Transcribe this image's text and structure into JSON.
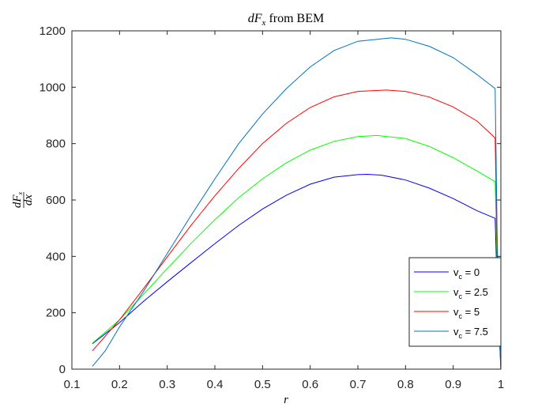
{
  "chart_data": {
    "type": "line",
    "title": "dF_x from BEM",
    "xlabel": "r",
    "ylabel": "dF_x/dx",
    "xlim": [
      0.1,
      1.0
    ],
    "ylim": [
      0,
      1200
    ],
    "xticks": [
      0.1,
      0.2,
      0.3,
      0.4,
      0.5,
      0.6,
      0.7,
      0.8,
      0.9,
      1.0
    ],
    "xtick_labels": [
      "0.1",
      "0.2",
      "0.3",
      "0.4",
      "0.5",
      "0.6",
      "0.7",
      "0.8",
      "0.9",
      "1"
    ],
    "yticks": [
      0,
      200,
      400,
      600,
      800,
      1000,
      1200
    ],
    "ytick_labels": [
      "0",
      "200",
      "400",
      "600",
      "800",
      "1000",
      "1200"
    ],
    "grid": false,
    "legend_position": "bottom-right",
    "series": [
      {
        "name": "v_c = 0",
        "legend_sub": "c",
        "legend_value": " = 0",
        "color": "#0000ff",
        "x": [
          0.143,
          0.2,
          0.25,
          0.3,
          0.35,
          0.4,
          0.45,
          0.5,
          0.55,
          0.6,
          0.65,
          0.7,
          0.72,
          0.75,
          0.8,
          0.85,
          0.9,
          0.95,
          0.988,
          0.992,
          0.996,
          1.0
        ],
        "y": [
          90,
          165,
          240,
          310,
          378,
          445,
          510,
          568,
          617,
          656,
          681,
          690,
          691,
          688,
          671,
          642,
          605,
          562,
          535,
          300,
          150,
          0
        ]
      },
      {
        "name": "v_c = 2.5",
        "legend_sub": "c",
        "legend_value": " = 2.5",
        "color": "#00ff00",
        "x": [
          0.143,
          0.2,
          0.25,
          0.3,
          0.35,
          0.4,
          0.45,
          0.5,
          0.55,
          0.6,
          0.65,
          0.7,
          0.74,
          0.8,
          0.85,
          0.9,
          0.95,
          0.988,
          0.992,
          0.996,
          1.0
        ],
        "y": [
          92,
          175,
          265,
          357,
          446,
          530,
          608,
          675,
          732,
          777,
          808,
          825,
          829,
          818,
          790,
          750,
          703,
          665,
          400,
          200,
          0
        ]
      },
      {
        "name": "v_c = 5",
        "legend_sub": "c",
        "legend_value": " = 5",
        "color": "#ff0000",
        "x": [
          0.143,
          0.2,
          0.25,
          0.3,
          0.35,
          0.4,
          0.45,
          0.5,
          0.55,
          0.6,
          0.65,
          0.7,
          0.76,
          0.8,
          0.85,
          0.9,
          0.95,
          0.988,
          0.992,
          0.996,
          1.0
        ],
        "y": [
          65,
          175,
          285,
          398,
          510,
          615,
          712,
          800,
          872,
          928,
          966,
          985,
          990,
          985,
          965,
          930,
          880,
          820,
          450,
          200,
          0
        ]
      },
      {
        "name": "v_c = 7.5",
        "legend_sub": "c",
        "legend_value": " = 7.5",
        "color": "#0072bd",
        "x": [
          0.143,
          0.17,
          0.2,
          0.25,
          0.3,
          0.35,
          0.4,
          0.45,
          0.5,
          0.55,
          0.6,
          0.65,
          0.7,
          0.77,
          0.8,
          0.85,
          0.9,
          0.95,
          0.988,
          0.992,
          0.996,
          1.0
        ],
        "y": [
          10,
          65,
          150,
          275,
          410,
          545,
          675,
          800,
          905,
          995,
          1072,
          1130,
          1163,
          1175,
          1170,
          1145,
          1105,
          1045,
          995,
          500,
          150,
          0
        ]
      }
    ]
  }
}
